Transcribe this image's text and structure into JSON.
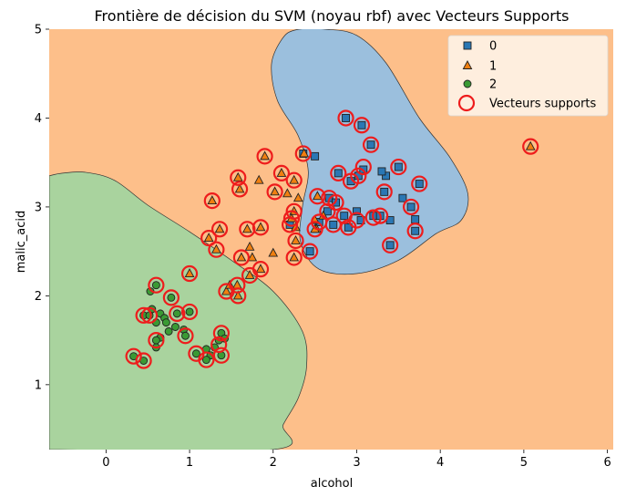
{
  "chart_data": {
    "type": "scatter",
    "title": "Frontière de décision du SVM (noyau rbf) avec Vecteurs Supports",
    "xlabel": "alcohol",
    "ylabel": "malic_acid",
    "xlim": [
      -0.68,
      6.07
    ],
    "ylim": [
      0.27,
      5.0
    ],
    "xticks": [
      "0",
      "1",
      "2",
      "3",
      "4",
      "5",
      "6"
    ],
    "yticks": [
      "1",
      "2",
      "3",
      "4",
      "5"
    ],
    "grid": false,
    "legend_position": "top-right",
    "background_region": {
      "class": "1",
      "color": "#fdbf8a"
    },
    "regions": [
      {
        "class": "0",
        "color": "#9bbfdd",
        "boundary": [
          [
            2.1,
            4.88
          ],
          [
            2.26,
            4.99
          ],
          [
            2.62,
            5.0
          ],
          [
            3.0,
            4.93
          ],
          [
            3.35,
            4.62
          ],
          [
            3.75,
            4.0
          ],
          [
            4.12,
            3.55
          ],
          [
            4.33,
            3.15
          ],
          [
            4.25,
            2.85
          ],
          [
            3.95,
            2.7
          ],
          [
            3.5,
            2.4
          ],
          [
            3.0,
            2.25
          ],
          [
            2.55,
            2.3
          ],
          [
            2.33,
            2.6
          ],
          [
            2.35,
            3.0
          ],
          [
            2.42,
            3.4
          ],
          [
            2.3,
            3.8
          ],
          [
            2.05,
            4.2
          ],
          [
            1.98,
            4.6
          ]
        ]
      },
      {
        "class": "2",
        "color": "#a9d39e",
        "boundary": [
          [
            -0.68,
            3.35
          ],
          [
            -0.52,
            3.38
          ],
          [
            -0.25,
            3.39
          ],
          [
            0.1,
            3.3
          ],
          [
            0.5,
            3.02
          ],
          [
            1.0,
            2.72
          ],
          [
            1.5,
            2.4
          ],
          [
            2.0,
            2.05
          ],
          [
            2.35,
            1.6
          ],
          [
            2.4,
            1.2
          ],
          [
            2.3,
            0.85
          ],
          [
            2.12,
            0.55
          ],
          [
            2.0,
            0.27
          ],
          [
            -0.68,
            0.27
          ]
        ]
      }
    ],
    "series": [
      {
        "name": "0",
        "marker": "square",
        "color": "#2a77b4",
        "points": [
          [
            2.87,
            4.0
          ],
          [
            3.06,
            3.92
          ],
          [
            3.17,
            3.7
          ],
          [
            2.36,
            3.6
          ],
          [
            2.5,
            3.57
          ],
          [
            3.5,
            3.45
          ],
          [
            2.78,
            3.38
          ],
          [
            3.02,
            3.35
          ],
          [
            2.93,
            3.29
          ],
          [
            3.08,
            3.42
          ],
          [
            3.35,
            3.35
          ],
          [
            3.3,
            3.4
          ],
          [
            3.75,
            3.26
          ],
          [
            3.33,
            3.17
          ],
          [
            3.55,
            3.1
          ],
          [
            3.65,
            3.0
          ],
          [
            2.67,
            3.1
          ],
          [
            2.75,
            3.05
          ],
          [
            2.65,
            2.95
          ],
          [
            2.85,
            2.9
          ],
          [
            3.0,
            2.95
          ],
          [
            3.2,
            2.9
          ],
          [
            3.28,
            2.9
          ],
          [
            3.4,
            2.85
          ],
          [
            2.9,
            2.77
          ],
          [
            3.05,
            2.85
          ],
          [
            3.7,
            2.86
          ],
          [
            3.7,
            2.73
          ],
          [
            3.4,
            2.57
          ],
          [
            2.44,
            2.5
          ],
          [
            2.72,
            2.8
          ],
          [
            2.55,
            2.83
          ],
          [
            2.2,
            2.8
          ]
        ]
      },
      {
        "name": "1",
        "marker": "triangle",
        "color": "#f07f10",
        "points": [
          [
            1.9,
            3.57
          ],
          [
            2.37,
            3.6
          ],
          [
            2.1,
            3.38
          ],
          [
            1.83,
            3.3
          ],
          [
            2.25,
            3.3
          ],
          [
            1.58,
            3.33
          ],
          [
            1.6,
            3.2
          ],
          [
            2.02,
            3.17
          ],
          [
            2.17,
            3.15
          ],
          [
            2.3,
            3.1
          ],
          [
            1.27,
            3.07
          ],
          [
            2.53,
            3.12
          ],
          [
            2.25,
            2.95
          ],
          [
            2.22,
            2.87
          ],
          [
            2.27,
            2.77
          ],
          [
            1.85,
            2.77
          ],
          [
            1.36,
            2.75
          ],
          [
            1.69,
            2.75
          ],
          [
            2.6,
            2.9
          ],
          [
            2.5,
            2.85
          ],
          [
            2.52,
            2.75
          ],
          [
            1.23,
            2.65
          ],
          [
            2.27,
            2.62
          ],
          [
            1.32,
            2.52
          ],
          [
            1.72,
            2.55
          ],
          [
            1.62,
            2.43
          ],
          [
            1.75,
            2.43
          ],
          [
            2.0,
            2.48
          ],
          [
            2.25,
            2.43
          ],
          [
            1.85,
            2.3
          ],
          [
            1.72,
            2.23
          ],
          [
            1.57,
            2.12
          ],
          [
            1.44,
            2.05
          ],
          [
            1.58,
            2.0
          ],
          [
            1.0,
            2.25
          ],
          [
            1.48,
            2.12
          ],
          [
            2.5,
            2.75
          ]
        ]
      },
      {
        "name": "2",
        "marker": "circle",
        "color": "#3a9a34",
        "points": [
          [
            0.6,
            2.12
          ],
          [
            0.53,
            2.05
          ],
          [
            0.55,
            1.85
          ],
          [
            0.45,
            1.78
          ],
          [
            0.52,
            1.78
          ],
          [
            0.6,
            1.7
          ],
          [
            0.65,
            1.8
          ],
          [
            0.7,
            1.75
          ],
          [
            0.72,
            1.7
          ],
          [
            0.78,
            1.98
          ],
          [
            0.85,
            1.8
          ],
          [
            1.0,
            1.82
          ],
          [
            0.75,
            1.6
          ],
          [
            0.83,
            1.65
          ],
          [
            0.93,
            1.62
          ],
          [
            0.95,
            1.55
          ],
          [
            0.65,
            1.53
          ],
          [
            0.6,
            1.5
          ],
          [
            0.6,
            1.42
          ],
          [
            1.3,
            1.42
          ],
          [
            1.35,
            1.5
          ],
          [
            1.38,
            1.58
          ],
          [
            1.42,
            1.52
          ],
          [
            1.08,
            1.35
          ],
          [
            1.2,
            1.4
          ],
          [
            1.25,
            1.33
          ],
          [
            1.2,
            1.28
          ],
          [
            1.38,
            1.33
          ],
          [
            0.33,
            1.32
          ],
          [
            0.45,
            1.27
          ]
        ]
      }
    ],
    "support_vectors": {
      "name": "Vecteurs supports",
      "color": "#ee1c1c",
      "points": [
        [
          2.87,
          4.0
        ],
        [
          3.06,
          3.92
        ],
        [
          3.17,
          3.7
        ],
        [
          2.36,
          3.6
        ],
        [
          3.5,
          3.45
        ],
        [
          2.78,
          3.38
        ],
        [
          3.02,
          3.35
        ],
        [
          3.08,
          3.45
        ],
        [
          2.93,
          3.29
        ],
        [
          3.75,
          3.26
        ],
        [
          3.33,
          3.17
        ],
        [
          3.65,
          3.0
        ],
        [
          2.67,
          3.1
        ],
        [
          2.75,
          3.05
        ],
        [
          2.65,
          2.95
        ],
        [
          2.85,
          2.9
        ],
        [
          3.0,
          2.85
        ],
        [
          3.2,
          2.88
        ],
        [
          3.28,
          2.9
        ],
        [
          2.9,
          2.77
        ],
        [
          3.7,
          2.73
        ],
        [
          3.4,
          2.57
        ],
        [
          2.44,
          2.5
        ],
        [
          2.72,
          2.8
        ],
        [
          2.55,
          2.83
        ],
        [
          2.5,
          2.75
        ],
        [
          2.2,
          2.8
        ],
        [
          1.9,
          3.57
        ],
        [
          2.1,
          3.38
        ],
        [
          2.25,
          3.3
        ],
        [
          1.58,
          3.33
        ],
        [
          1.6,
          3.2
        ],
        [
          2.02,
          3.17
        ],
        [
          1.27,
          3.07
        ],
        [
          2.53,
          3.12
        ],
        [
          2.25,
          2.95
        ],
        [
          2.22,
          2.87
        ],
        [
          1.85,
          2.77
        ],
        [
          1.36,
          2.75
        ],
        [
          1.69,
          2.75
        ],
        [
          1.23,
          2.65
        ],
        [
          2.27,
          2.62
        ],
        [
          1.32,
          2.52
        ],
        [
          1.62,
          2.43
        ],
        [
          2.25,
          2.43
        ],
        [
          1.85,
          2.3
        ],
        [
          1.72,
          2.23
        ],
        [
          1.57,
          2.12
        ],
        [
          1.44,
          2.05
        ],
        [
          1.58,
          2.0
        ],
        [
          1.0,
          2.25
        ],
        [
          0.6,
          2.12
        ],
        [
          0.78,
          1.98
        ],
        [
          0.45,
          1.78
        ],
        [
          0.52,
          1.78
        ],
        [
          0.85,
          1.8
        ],
        [
          1.0,
          1.82
        ],
        [
          0.95,
          1.55
        ],
        [
          0.6,
          1.5
        ],
        [
          1.38,
          1.58
        ],
        [
          1.35,
          1.45
        ],
        [
          1.08,
          1.35
        ],
        [
          1.2,
          1.28
        ],
        [
          1.38,
          1.33
        ],
        [
          0.33,
          1.32
        ],
        [
          0.45,
          1.27
        ],
        [
          5.08,
          3.68
        ]
      ]
    },
    "outlier_point": {
      "class": "1",
      "x": 5.08,
      "y": 3.68
    },
    "legend": [
      "0",
      "1",
      "2",
      "Vecteurs supports"
    ]
  }
}
